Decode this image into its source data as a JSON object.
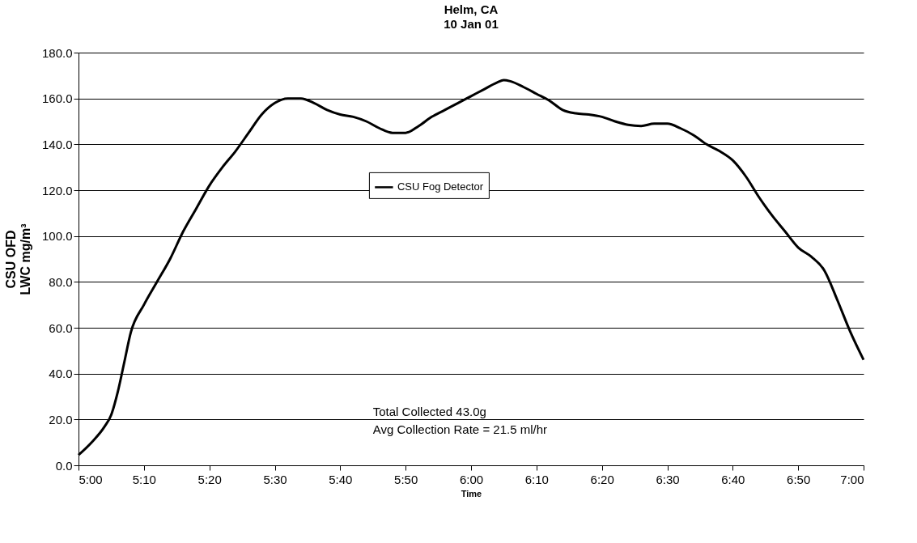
{
  "chart_data": {
    "type": "line",
    "title": "Helm, CA",
    "subtitle": "10 Jan 01",
    "xlabel": "Time",
    "ylabel": "CSU OFD\nLWC mg/m³",
    "x": [
      5.0,
      5.0333,
      5.0667,
      5.0833,
      5.1,
      5.1167,
      5.1333,
      5.1667,
      5.2,
      5.2333,
      5.2667,
      5.3,
      5.3333,
      5.3667,
      5.4,
      5.4333,
      5.4667,
      5.5,
      5.5333,
      5.5667,
      5.6,
      5.6333,
      5.6667,
      5.7,
      5.7333,
      5.7667,
      5.8,
      5.8333,
      5.8667,
      5.9,
      5.9333,
      5.9667,
      6.0,
      6.0333,
      6.0667,
      6.0833,
      6.1,
      6.1333,
      6.1667,
      6.2,
      6.2333,
      6.2667,
      6.3,
      6.3333,
      6.3667,
      6.4,
      6.4333,
      6.4667,
      6.5,
      6.5333,
      6.5667,
      6.6,
      6.6333,
      6.6667,
      6.7,
      6.7333,
      6.7667,
      6.8,
      6.8333,
      6.8667,
      6.9,
      6.9333,
      6.9667,
      7.0
    ],
    "series": [
      {
        "name": "CSU Fog Detector",
        "color": "#000000",
        "values": [
          4.5,
          10,
          17,
          22,
          32,
          45,
          58,
          70,
          80,
          90,
          102,
          112,
          122,
          130,
          137,
          145,
          153,
          158,
          160,
          160,
          158,
          155,
          153,
          152,
          150,
          147,
          145,
          145,
          148,
          152,
          155,
          158,
          161,
          164,
          167,
          168,
          167.5,
          165,
          162,
          159,
          155,
          153.5,
          153,
          152,
          150,
          148.5,
          148,
          149,
          149,
          147,
          144,
          140,
          137,
          133,
          126,
          117,
          109,
          102,
          95,
          91,
          85,
          72,
          58,
          46
        ]
      }
    ],
    "xlim": [
      5.0,
      7.0
    ],
    "xticks": [
      {
        "value": 5.0,
        "label": "5:00"
      },
      {
        "value": 5.1667,
        "label": "5:10"
      },
      {
        "value": 5.3333,
        "label": "5:20"
      },
      {
        "value": 5.5,
        "label": "5:30"
      },
      {
        "value": 5.6667,
        "label": "5:40"
      },
      {
        "value": 5.8333,
        "label": "5:50"
      },
      {
        "value": 6.0,
        "label": "6:00"
      },
      {
        "value": 6.1667,
        "label": "6:10"
      },
      {
        "value": 6.3333,
        "label": "6:20"
      },
      {
        "value": 6.5,
        "label": "6:30"
      },
      {
        "value": 6.6667,
        "label": "6:40"
      },
      {
        "value": 6.8333,
        "label": "6:50"
      },
      {
        "value": 7.0,
        "label": "7:00"
      }
    ],
    "ylim": [
      0,
      180
    ],
    "yticks": [
      {
        "value": 0,
        "label": "0.0"
      },
      {
        "value": 20,
        "label": "20.0"
      },
      {
        "value": 40,
        "label": "40.0"
      },
      {
        "value": 60,
        "label": "60.0"
      },
      {
        "value": 80,
        "label": "80.0"
      },
      {
        "value": 100,
        "label": "100.0"
      },
      {
        "value": 120,
        "label": "120.0"
      },
      {
        "value": 140,
        "label": "140.0"
      },
      {
        "value": 160,
        "label": "160.0"
      },
      {
        "value": 180,
        "label": "180.0"
      }
    ],
    "grid": "y",
    "legend": "top",
    "marker": "none",
    "line_style": "solid",
    "annotations": [
      "Total Collected 43.0g",
      "Avg Collection Rate = 21.5 ml/hr"
    ]
  }
}
